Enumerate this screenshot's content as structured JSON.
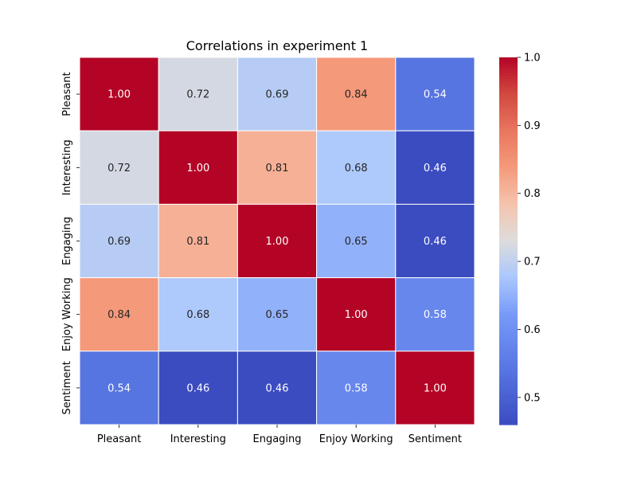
{
  "chart_data": {
    "type": "heatmap",
    "title": "Correlations in experiment 1",
    "xlabel": "",
    "ylabel": "",
    "x_categories": [
      "Pleasant",
      "Interesting",
      "Engaging",
      "Enjoy Working",
      "Sentiment"
    ],
    "y_categories": [
      "Pleasant",
      "Interesting",
      "Engaging",
      "Enjoy Working",
      "Sentiment"
    ],
    "values": [
      [
        1.0,
        0.72,
        0.69,
        0.84,
        0.54
      ],
      [
        0.72,
        1.0,
        0.81,
        0.68,
        0.46
      ],
      [
        0.69,
        0.81,
        1.0,
        0.65,
        0.46
      ],
      [
        0.84,
        0.68,
        0.65,
        1.0,
        0.58
      ],
      [
        0.54,
        0.46,
        0.46,
        0.58,
        1.0
      ]
    ],
    "value_format": "2 decimals",
    "colormap": "coolwarm",
    "color_range": [
      0.46,
      1.0
    ],
    "colorbar": {
      "position": "right",
      "ticks": [
        0.5,
        0.6,
        0.7,
        0.8,
        0.9,
        1.0
      ],
      "tick_labels": [
        "0.5",
        "0.6",
        "0.7",
        "0.8",
        "0.9",
        "1.0"
      ]
    },
    "cell_border_color": "#ffffff",
    "grid": false
  }
}
